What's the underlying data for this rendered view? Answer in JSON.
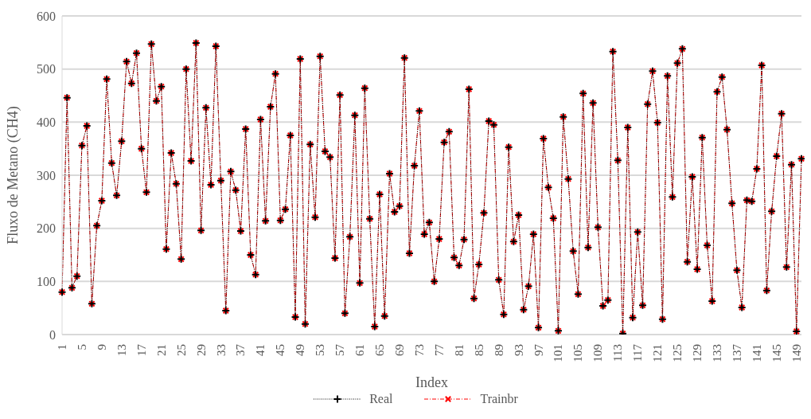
{
  "chart_data": {
    "type": "line",
    "xlabel": "Index",
    "ylabel": "Fluxo de Metano (CH4)",
    "categories": [
      "1",
      null,
      null,
      null,
      "5",
      null,
      null,
      null,
      "9",
      null,
      null,
      null,
      "13",
      null,
      null,
      null,
      "17",
      null,
      null,
      null,
      "21",
      null,
      null,
      null,
      "25",
      null,
      null,
      null,
      "29",
      null,
      null,
      null,
      "33",
      null,
      null,
      null,
      "37",
      null,
      null,
      null,
      "41",
      null,
      null,
      null,
      "45",
      null,
      null,
      null,
      "49",
      null,
      null,
      null,
      "53",
      null,
      null,
      null,
      "57",
      null,
      null,
      null,
      "61",
      null,
      null,
      null,
      "65",
      null,
      null,
      null,
      "69",
      null,
      null,
      null,
      "73",
      null,
      null,
      null,
      "77",
      null,
      null,
      null,
      "81",
      null,
      null,
      null,
      "85",
      null,
      null,
      null,
      "89",
      null,
      null,
      null,
      "93",
      null,
      null,
      null,
      "97",
      null,
      null,
      null,
      "101",
      null,
      null,
      null,
      "105",
      null,
      null,
      null,
      "109",
      null,
      null,
      null,
      "113",
      null,
      null,
      null,
      "117",
      null,
      null,
      null,
      "121",
      null,
      null,
      null,
      "125",
      null,
      null,
      null,
      "129",
      null,
      null,
      null,
      "133",
      null,
      null,
      null,
      "137",
      null,
      null,
      null,
      "141",
      null,
      null,
      null,
      "145",
      null,
      null,
      null,
      "149",
      null
    ],
    "series": [
      {
        "name": "Real",
        "color": "#000000",
        "marker": "cross",
        "line_style": "dotted",
        "values": [
          80,
          446,
          88,
          110,
          356,
          393,
          58,
          205,
          252,
          481,
          323,
          262,
          364,
          514,
          473,
          530,
          350,
          268,
          547,
          440,
          467,
          161,
          342,
          284,
          142,
          500,
          327,
          549,
          196,
          427,
          282,
          543,
          290,
          45,
          307,
          272,
          195,
          387,
          150,
          113,
          405,
          214,
          429,
          491,
          215,
          236,
          375,
          33,
          519,
          20,
          358,
          221,
          524,
          345,
          334,
          144,
          451,
          40,
          184,
          413,
          97,
          464,
          218,
          15,
          264,
          35,
          303,
          231,
          242,
          521,
          153,
          318,
          421,
          189,
          211,
          100,
          180,
          362,
          382,
          145,
          130,
          179,
          462,
          68,
          132,
          229,
          402,
          395,
          103,
          38,
          353,
          175,
          225,
          47,
          91,
          189,
          13,
          369,
          277,
          219,
          7,
          410,
          293,
          157,
          76,
          454,
          164,
          436,
          202,
          54,
          65,
          533,
          328,
          2,
          390,
          32,
          193,
          55,
          434,
          496,
          399,
          29,
          487,
          259,
          511,
          538,
          137,
          297,
          123,
          371,
          168,
          63,
          457,
          485,
          386,
          247,
          121,
          51,
          253,
          251,
          312,
          507,
          83,
          232,
          336,
          416,
          127,
          320,
          6,
          331
        ]
      },
      {
        "name": "Trainbr",
        "color": "#ff0000",
        "marker": "cross",
        "line_style": "dashed",
        "values": [
          80,
          446,
          88,
          110,
          356,
          393,
          58,
          205,
          252,
          481,
          323,
          262,
          364,
          514,
          473,
          530,
          350,
          268,
          547,
          440,
          467,
          161,
          342,
          284,
          142,
          500,
          327,
          549,
          196,
          427,
          282,
          543,
          290,
          45,
          307,
          272,
          195,
          387,
          150,
          113,
          405,
          214,
          429,
          491,
          215,
          236,
          375,
          33,
          519,
          20,
          358,
          221,
          524,
          345,
          334,
          144,
          451,
          40,
          184,
          413,
          97,
          464,
          218,
          15,
          264,
          35,
          303,
          231,
          242,
          521,
          153,
          318,
          421,
          189,
          211,
          100,
          180,
          362,
          382,
          145,
          130,
          179,
          462,
          68,
          132,
          229,
          402,
          395,
          103,
          38,
          353,
          175,
          225,
          47,
          91,
          189,
          13,
          369,
          277,
          219,
          7,
          410,
          293,
          157,
          76,
          454,
          164,
          436,
          202,
          54,
          65,
          533,
          328,
          2,
          390,
          32,
          193,
          55,
          434,
          496,
          399,
          29,
          487,
          259,
          511,
          538,
          137,
          297,
          123,
          371,
          168,
          63,
          457,
          485,
          386,
          247,
          121,
          51,
          253,
          251,
          312,
          507,
          83,
          232,
          336,
          416,
          127,
          320,
          6,
          331
        ]
      }
    ],
    "ylim": [
      0,
      600
    ],
    "yticks": [
      0,
      100,
      200,
      300,
      400,
      500,
      600
    ],
    "grid": "y",
    "legend": "bottom"
  }
}
